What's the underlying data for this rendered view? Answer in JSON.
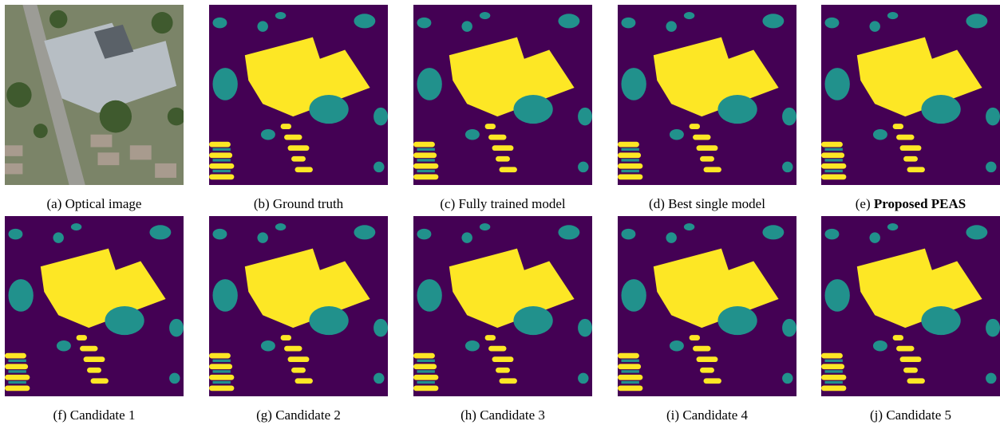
{
  "panels": [
    {
      "label": "(a)",
      "caption": "Optical image"
    },
    {
      "label": "(b)",
      "caption": "Ground truth"
    },
    {
      "label": "(c)",
      "caption": "Fully trained model"
    },
    {
      "label": "(d)",
      "caption": "Best single model"
    },
    {
      "label": "(e)",
      "caption": "Proposed PEAS"
    },
    {
      "label": "(f)",
      "caption": "Candidate 1"
    },
    {
      "label": "(g)",
      "caption": "Candidate 2"
    },
    {
      "label": "(h)",
      "caption": "Candidate 3"
    },
    {
      "label": "(i)",
      "caption": "Candidate 4"
    },
    {
      "label": "(j)",
      "caption": "Candidate 5"
    }
  ]
}
